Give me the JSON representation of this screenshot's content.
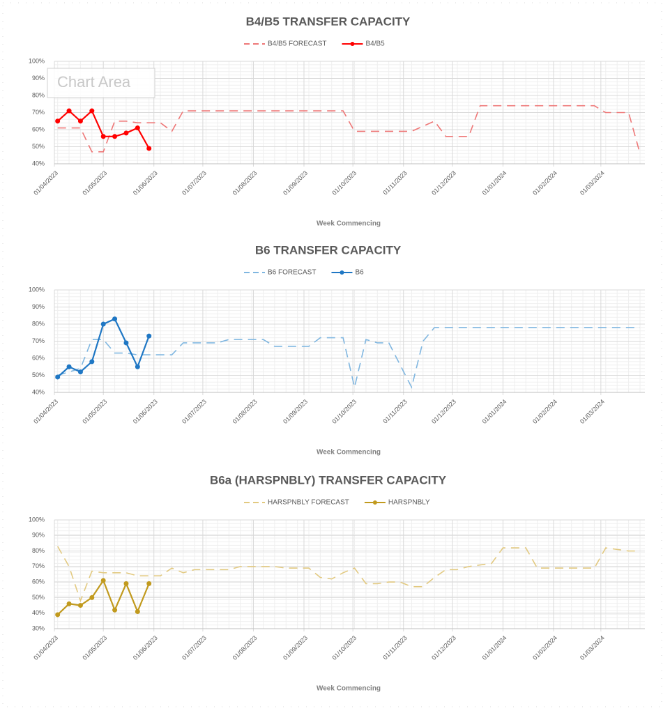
{
  "tooltip": "Chart Area",
  "chart_data": [
    {
      "type": "line",
      "title": "B4/B5 TRANSFER CAPACITY",
      "x_label": "Week Commencing",
      "legend": "top",
      "grid": true,
      "x": [
        "2023-04-03",
        "2023-04-10",
        "2023-04-17",
        "2023-04-24",
        "2023-05-01",
        "2023-05-08",
        "2023-05-15",
        "2023-05-22",
        "2023-05-29",
        "2023-06-05",
        "2023-06-12",
        "2023-06-19",
        "2023-06-26",
        "2023-07-03",
        "2023-07-10",
        "2023-07-17",
        "2023-07-24",
        "2023-07-31",
        "2023-08-07",
        "2023-08-14",
        "2023-08-21",
        "2023-08-28",
        "2023-09-04",
        "2023-09-11",
        "2023-09-18",
        "2023-09-25",
        "2023-10-02",
        "2023-10-09",
        "2023-10-16",
        "2023-10-23",
        "2023-10-30",
        "2023-11-06",
        "2023-11-13",
        "2023-11-20",
        "2023-11-27",
        "2023-12-04",
        "2023-12-11",
        "2023-12-18",
        "2023-12-25",
        "2024-01-01",
        "2024-01-08",
        "2024-01-15",
        "2024-01-22",
        "2024-01-29",
        "2024-02-05",
        "2024-02-12",
        "2024-02-19",
        "2024-02-26",
        "2024-03-04",
        "2024-03-11",
        "2024-03-18",
        "2024-03-25"
      ],
      "xlim": [
        "2023-04-01",
        "2024-03-28"
      ],
      "xticks": [
        {
          "value": "2023-04-01",
          "label": "01/04/2023"
        },
        {
          "value": "2023-05-01",
          "label": "01/05/2023"
        },
        {
          "value": "2023-06-01",
          "label": "01/06/2023"
        },
        {
          "value": "2023-07-01",
          "label": "01/07/2023"
        },
        {
          "value": "2023-08-01",
          "label": "01/08/2023"
        },
        {
          "value": "2023-09-01",
          "label": "01/09/2023"
        },
        {
          "value": "2023-10-01",
          "label": "01/10/2023"
        },
        {
          "value": "2023-11-01",
          "label": "01/11/2023"
        },
        {
          "value": "2023-12-01",
          "label": "01/12/2023"
        },
        {
          "value": "2024-01-01",
          "label": "01/01/2024"
        },
        {
          "value": "2024-02-01",
          "label": "01/02/2024"
        },
        {
          "value": "2024-03-01",
          "label": "01/03/2024"
        }
      ],
      "ylim": [
        40,
        100
      ],
      "yticks": [
        {
          "value": 40,
          "label": "40%"
        },
        {
          "value": 50,
          "label": "50%"
        },
        {
          "value": 60,
          "label": "60%"
        },
        {
          "value": 70,
          "label": "70%"
        },
        {
          "value": 80,
          "label": "80%"
        },
        {
          "value": 90,
          "label": "90%"
        },
        {
          "value": 100,
          "label": "100%"
        }
      ],
      "series": [
        {
          "name": "B4/B5 FORECAST",
          "color": "#ee7777",
          "dashed": true,
          "marker": false,
          "values": [
            61,
            61,
            61,
            47,
            47,
            65,
            65,
            64,
            64,
            64,
            59,
            71,
            71,
            71,
            71,
            71,
            71,
            71,
            71,
            71,
            71,
            71,
            71,
            71,
            71,
            71,
            59,
            59,
            59,
            59,
            59,
            59,
            62,
            65,
            56,
            56,
            56,
            74,
            74,
            74,
            74,
            74,
            74,
            74,
            74,
            74,
            74,
            74,
            70,
            70,
            70,
            46
          ]
        },
        {
          "name": "B4/B5",
          "color": "#ff0000",
          "dashed": false,
          "marker": true,
          "values": [
            65,
            71,
            65,
            71,
            56,
            56,
            58,
            61,
            49,
            null,
            null,
            null,
            null,
            null,
            null,
            null,
            null,
            null,
            null,
            null,
            null,
            null,
            null,
            null,
            null,
            null,
            null,
            null,
            null,
            null,
            null,
            null,
            null,
            null,
            null,
            null,
            null,
            null,
            null,
            null,
            null,
            null,
            null,
            null,
            null,
            null,
            null,
            null,
            null,
            null,
            null,
            null
          ]
        }
      ]
    },
    {
      "type": "line",
      "title": "B6 TRANSFER CAPACITY",
      "x_label": "Week Commencing",
      "legend": "top",
      "grid": true,
      "x": [
        "2023-04-03",
        "2023-04-10",
        "2023-04-17",
        "2023-04-24",
        "2023-05-01",
        "2023-05-08",
        "2023-05-15",
        "2023-05-22",
        "2023-05-29",
        "2023-06-05",
        "2023-06-12",
        "2023-06-19",
        "2023-06-26",
        "2023-07-03",
        "2023-07-10",
        "2023-07-17",
        "2023-07-24",
        "2023-07-31",
        "2023-08-07",
        "2023-08-14",
        "2023-08-21",
        "2023-08-28",
        "2023-09-04",
        "2023-09-11",
        "2023-09-18",
        "2023-09-25",
        "2023-10-02",
        "2023-10-09",
        "2023-10-16",
        "2023-10-23",
        "2023-10-30",
        "2023-11-06",
        "2023-11-13",
        "2023-11-20",
        "2023-11-27",
        "2023-12-04",
        "2023-12-11",
        "2023-12-18",
        "2023-12-25",
        "2024-01-01",
        "2024-01-08",
        "2024-01-15",
        "2024-01-22",
        "2024-01-29",
        "2024-02-05",
        "2024-02-12",
        "2024-02-19",
        "2024-02-26",
        "2024-03-04",
        "2024-03-11",
        "2024-03-18",
        "2024-03-25"
      ],
      "xlim": [
        "2023-04-01",
        "2024-03-28"
      ],
      "xticks": [
        {
          "value": "2023-04-01",
          "label": "01/04/2023"
        },
        {
          "value": "2023-05-01",
          "label": "01/05/2023"
        },
        {
          "value": "2023-06-01",
          "label": "01/06/2023"
        },
        {
          "value": "2023-07-01",
          "label": "01/07/2023"
        },
        {
          "value": "2023-08-01",
          "label": "01/08/2023"
        },
        {
          "value": "2023-09-01",
          "label": "01/09/2023"
        },
        {
          "value": "2023-10-01",
          "label": "01/10/2023"
        },
        {
          "value": "2023-11-01",
          "label": "01/11/2023"
        },
        {
          "value": "2023-12-01",
          "label": "01/12/2023"
        },
        {
          "value": "2024-01-01",
          "label": "01/01/2024"
        },
        {
          "value": "2024-02-01",
          "label": "01/02/2024"
        },
        {
          "value": "2024-03-01",
          "label": "01/03/2024"
        }
      ],
      "ylim": [
        40,
        100
      ],
      "yticks": [
        {
          "value": 40,
          "label": "40%"
        },
        {
          "value": 50,
          "label": "50%"
        },
        {
          "value": 60,
          "label": "60%"
        },
        {
          "value": 70,
          "label": "70%"
        },
        {
          "value": 80,
          "label": "80%"
        },
        {
          "value": 90,
          "label": "90%"
        },
        {
          "value": 100,
          "label": "100%"
        }
      ],
      "series": [
        {
          "name": "B6 FORECAST",
          "color": "#7fb6e0",
          "dashed": true,
          "marker": false,
          "values": [
            50,
            52,
            54,
            71,
            71,
            63,
            63,
            62,
            62,
            62,
            62,
            69,
            69,
            69,
            69,
            71,
            71,
            71,
            71,
            67,
            67,
            67,
            67,
            72,
            72,
            72,
            43,
            71,
            69,
            69,
            56,
            43,
            70,
            78,
            78,
            78,
            78,
            78,
            78,
            78,
            78,
            78,
            78,
            78,
            78,
            78,
            78,
            78,
            78,
            78,
            78,
            78
          ]
        },
        {
          "name": "B6",
          "color": "#1f77c4",
          "dashed": false,
          "marker": true,
          "values": [
            49,
            55,
            52,
            58,
            80,
            83,
            69,
            55,
            73,
            null,
            null,
            null,
            null,
            null,
            null,
            null,
            null,
            null,
            null,
            null,
            null,
            null,
            null,
            null,
            null,
            null,
            null,
            null,
            null,
            null,
            null,
            null,
            null,
            null,
            null,
            null,
            null,
            null,
            null,
            null,
            null,
            null,
            null,
            null,
            null,
            null,
            null,
            null,
            null,
            null,
            null,
            null
          ]
        }
      ]
    },
    {
      "type": "line",
      "title": "B6a (HARSPNBLY) TRANSFER CAPACITY",
      "x_label": "Week Commencing",
      "legend": "top",
      "grid": true,
      "x": [
        "2023-04-03",
        "2023-04-10",
        "2023-04-17",
        "2023-04-24",
        "2023-05-01",
        "2023-05-08",
        "2023-05-15",
        "2023-05-22",
        "2023-05-29",
        "2023-06-05",
        "2023-06-12",
        "2023-06-19",
        "2023-06-26",
        "2023-07-03",
        "2023-07-10",
        "2023-07-17",
        "2023-07-24",
        "2023-07-31",
        "2023-08-07",
        "2023-08-14",
        "2023-08-21",
        "2023-08-28",
        "2023-09-04",
        "2023-09-11",
        "2023-09-18",
        "2023-09-25",
        "2023-10-02",
        "2023-10-09",
        "2023-10-16",
        "2023-10-23",
        "2023-10-30",
        "2023-11-06",
        "2023-11-13",
        "2023-11-20",
        "2023-11-27",
        "2023-12-04",
        "2023-12-11",
        "2023-12-18",
        "2023-12-25",
        "2024-01-01",
        "2024-01-08",
        "2024-01-15",
        "2024-01-22",
        "2024-01-29",
        "2024-02-05",
        "2024-02-12",
        "2024-02-19",
        "2024-02-26",
        "2024-03-04",
        "2024-03-11",
        "2024-03-18",
        "2024-03-25"
      ],
      "xlim": [
        "2023-04-01",
        "2024-03-28"
      ],
      "xticks": [
        {
          "value": "2023-04-01",
          "label": "01/04/2023"
        },
        {
          "value": "2023-05-01",
          "label": "01/05/2023"
        },
        {
          "value": "2023-06-01",
          "label": "01/06/2023"
        },
        {
          "value": "2023-07-01",
          "label": "01/07/2023"
        },
        {
          "value": "2023-08-01",
          "label": "01/08/2023"
        },
        {
          "value": "2023-09-01",
          "label": "01/09/2023"
        },
        {
          "value": "2023-10-01",
          "label": "01/10/2023"
        },
        {
          "value": "2023-11-01",
          "label": "01/11/2023"
        },
        {
          "value": "2023-12-01",
          "label": "01/12/2023"
        },
        {
          "value": "2024-01-01",
          "label": "01/01/2024"
        },
        {
          "value": "2024-02-01",
          "label": "01/02/2024"
        },
        {
          "value": "2024-03-01",
          "label": "01/03/2024"
        }
      ],
      "ylim": [
        30,
        100
      ],
      "yticks": [
        {
          "value": 30,
          "label": "30%"
        },
        {
          "value": 40,
          "label": "40%"
        },
        {
          "value": 50,
          "label": "50%"
        },
        {
          "value": 60,
          "label": "60%"
        },
        {
          "value": 70,
          "label": "70%"
        },
        {
          "value": 80,
          "label": "80%"
        },
        {
          "value": 90,
          "label": "90%"
        },
        {
          "value": 100,
          "label": "100%"
        }
      ],
      "series": [
        {
          "name": "HARSPNBLY FORECAST",
          "color": "#e2c980",
          "dashed": true,
          "marker": false,
          "values": [
            83,
            70,
            48,
            67,
            66,
            66,
            66,
            64,
            64,
            64,
            69,
            66,
            68,
            68,
            68,
            68,
            70,
            70,
            70,
            70,
            69,
            69,
            69,
            63,
            62,
            66,
            69,
            59,
            59,
            60,
            60,
            57,
            57,
            63,
            68,
            68,
            70,
            71,
            72,
            82,
            82,
            82,
            69,
            69,
            69,
            69,
            69,
            69,
            82,
            81,
            80,
            80
          ]
        },
        {
          "name": "HARSPNBLY",
          "color": "#c19a1e",
          "dashed": false,
          "marker": true,
          "values": [
            39,
            46,
            45,
            50,
            61,
            42,
            59,
            41,
            59,
            null,
            null,
            null,
            null,
            null,
            null,
            null,
            null,
            null,
            null,
            null,
            null,
            null,
            null,
            null,
            null,
            null,
            null,
            null,
            null,
            null,
            null,
            null,
            null,
            null,
            null,
            null,
            null,
            null,
            null,
            null,
            null,
            null,
            null,
            null,
            null,
            null,
            null,
            null,
            null,
            null,
            null,
            null
          ]
        }
      ]
    }
  ]
}
